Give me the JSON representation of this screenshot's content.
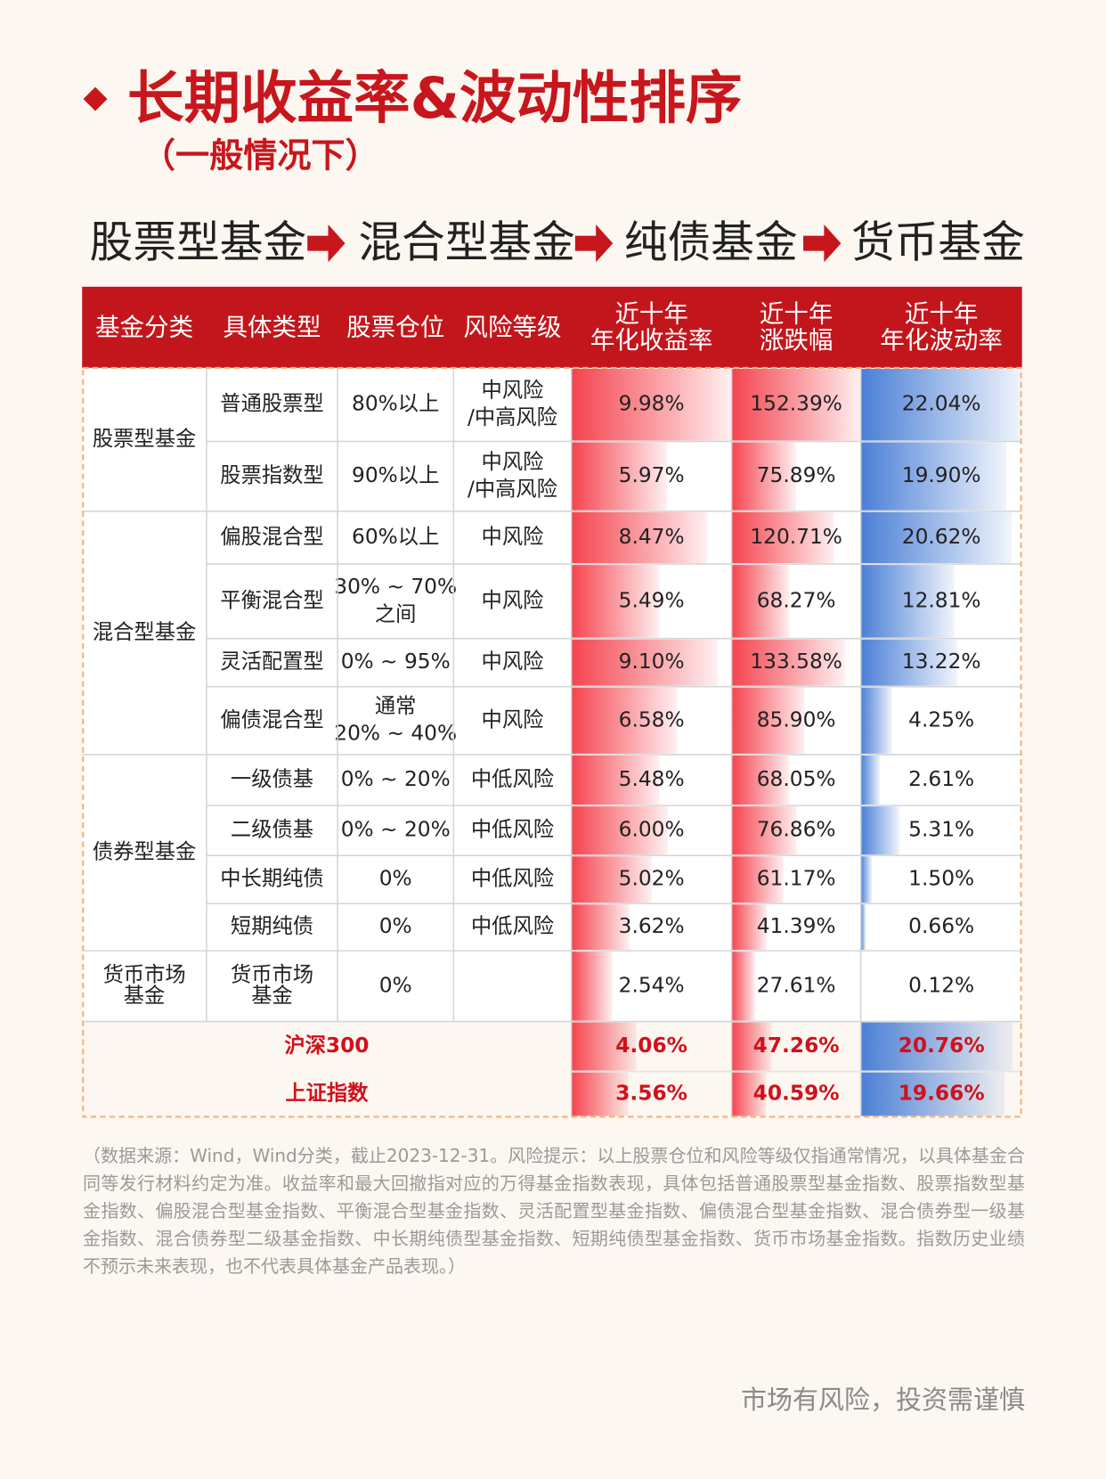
{
  "header": {
    "title": "长期收益率&波动性排序",
    "subtitle": "（一般情况下）",
    "flow": [
      "股票型基金",
      "混合型基金",
      "纯债基金",
      "货币基金"
    ]
  },
  "table": {
    "columns": [
      "基金分类",
      "具体类型",
      "股票仓位",
      "风险等级",
      [
        "近十年",
        "年化收益率"
      ],
      [
        "近十年",
        "涨跌幅"
      ],
      [
        "近十年",
        "年化波动率"
      ]
    ],
    "groups": [
      {
        "name": "股票型基金",
        "rows": [
          {
            "type": "普通股票型",
            "position": "80%以上",
            "risk": [
              "中风险",
              "/中高风险"
            ],
            "return": {
              "value": 9.98,
              "label": "9.98%"
            },
            "change": {
              "value": 152.39,
              "label": "152.39%"
            },
            "volatility": {
              "value": 22.04,
              "label": "22.04%"
            }
          },
          {
            "type": "股票指数型",
            "position": "90%以上",
            "risk": [
              "中风险",
              "/中高风险"
            ],
            "return": {
              "value": 5.97,
              "label": "5.97%"
            },
            "change": {
              "value": 75.89,
              "label": "75.89%"
            },
            "volatility": {
              "value": 19.9,
              "label": "19.90%"
            }
          }
        ]
      },
      {
        "name": "混合型基金",
        "rows": [
          {
            "type": "偏股混合型",
            "position": "60%以上",
            "risk": "中风险",
            "return": {
              "value": 8.47,
              "label": "8.47%"
            },
            "change": {
              "value": 120.71,
              "label": "120.71%"
            },
            "volatility": {
              "value": 20.62,
              "label": "20.62%"
            }
          },
          {
            "type": "平衡混合型",
            "position": [
              "30% ~ 70%",
              "之间"
            ],
            "risk": "中风险",
            "return": {
              "value": 5.49,
              "label": "5.49%"
            },
            "change": {
              "value": 68.27,
              "label": "68.27%"
            },
            "volatility": {
              "value": 12.81,
              "label": "12.81%"
            }
          },
          {
            "type": "灵活配置型",
            "position": "0% ~ 95%",
            "risk": "中风险",
            "return": {
              "value": 9.1,
              "label": "9.10%"
            },
            "change": {
              "value": 133.58,
              "label": "133.58%"
            },
            "volatility": {
              "value": 13.22,
              "label": "13.22%"
            }
          },
          {
            "type": "偏债混合型",
            "position": [
              "通常",
              "20% ~ 40%"
            ],
            "risk": "中风险",
            "return": {
              "value": 6.58,
              "label": "6.58%"
            },
            "change": {
              "value": 85.9,
              "label": "85.90%"
            },
            "volatility": {
              "value": 4.25,
              "label": "4.25%"
            }
          }
        ]
      },
      {
        "name": "债券型基金",
        "rows": [
          {
            "type": "一级债基",
            "position": "0% ~ 20%",
            "risk": "中低风险",
            "return": {
              "value": 5.48,
              "label": "5.48%"
            },
            "change": {
              "value": 68.05,
              "label": "68.05%"
            },
            "volatility": {
              "value": 2.61,
              "label": "2.61%"
            }
          },
          {
            "type": "二级债基",
            "position": "0% ~ 20%",
            "risk": "中低风险",
            "return": {
              "value": 6,
              "label": "6.00%"
            },
            "change": {
              "value": 76.86,
              "label": "76.86%"
            },
            "volatility": {
              "value": 5.31,
              "label": "5.31%"
            }
          },
          {
            "type": "中长期纯债",
            "position": "0%",
            "risk": "中低风险",
            "return": {
              "value": 5.02,
              "label": "5.02%"
            },
            "change": {
              "value": 61.17,
              "label": "61.17%"
            },
            "volatility": {
              "value": 1.5,
              "label": "1.50%"
            }
          },
          {
            "type": "短期纯债",
            "position": "0%",
            "risk": "中低风险",
            "return": {
              "value": 3.62,
              "label": "3.62%"
            },
            "change": {
              "value": 41.39,
              "label": "41.39%"
            },
            "volatility": {
              "value": 0.66,
              "label": "0.66%"
            }
          }
        ]
      },
      {
        "name": [
          "货币市场",
          "基金"
        ],
        "rows": [
          {
            "type": [
              "货币市场",
              "基金"
            ],
            "position": "0%",
            "return": {
              "value": 2.54,
              "label": "2.54%"
            },
            "change": {
              "value": 27.61,
              "label": "27.61%"
            },
            "volatility": {
              "value": 0.12,
              "label": "0.12%"
            }
          }
        ]
      }
    ],
    "indices": [
      {
        "name": "沪深300",
        "return": {
          "value": 4.06,
          "label": "4.06%"
        },
        "change": {
          "value": 47.26,
          "label": "47.26%"
        },
        "volatility": {
          "value": 20.76,
          "label": "20.76%"
        }
      },
      {
        "name": "上证指数",
        "return": {
          "value": 3.56,
          "label": "3.56%"
        },
        "change": {
          "value": 40.59,
          "label": "40.59%"
        },
        "volatility": {
          "value": 19.66,
          "label": "19.66%"
        }
      }
    ]
  },
  "note": "（数据来源：Wind，Wind分类，截止2023-12-31。风险提示：以上股票仓位和风险等级仅指通常情况，以具体基金合同等发行材料约定为准。收益率和最大回撤指对应的万得基金指数表现，具体包括普通股票型基金指数、股票指数型基金指数、偏股混合型基金指数、平衡混合型基金指数、灵活配置型基金指数、偏债混合型基金指数、混合债券型一级基金指数、混合债券型二级基金指数、中长期纯债型基金指数、短期纯债型基金指数、货币市场基金指数。指数历史业绩不预示未来表现，也不代表具体基金产品表现。）",
  "footer": "市场有风险，投资需谨慎"
}
